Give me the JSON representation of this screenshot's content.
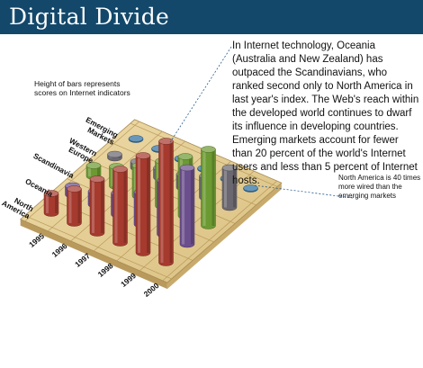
{
  "title": "Digital Divide",
  "notes": {
    "left": "Height of bars represents scores on Internet indicators",
    "main": "In Internet technology, Oceania (Australia and New Zealand) has outpaced the Scandinavians, who ranked second only to North America in last year's index. The Web's reach within the developed world continues to dwarf its influence in developing countries. Emerging markets account for fewer than 20 percent of the world's Internet users and less than 5 percent of Internet hosts.",
    "right": "North America is 40 times more wired than the emerging markets"
  },
  "colors": {
    "North America": "#a63a2e",
    "Oceania": "#6b4f8d",
    "Scandinavia": "#6c9a32",
    "Western Europe": "#6b6770",
    "Emerging Markets": "#2f6f9e",
    "title_bar": "#13486b",
    "floor": "#e6d09a"
  },
  "chart_data": {
    "type": "bar",
    "subtype": "3d-grouped",
    "categories": [
      "1995",
      "1996",
      "1997",
      "1998",
      "1999",
      "2000"
    ],
    "series": [
      {
        "name": "North America",
        "values": [
          22,
          38,
          60,
          82,
          108,
          135
        ]
      },
      {
        "name": "Oceania",
        "values": [
          10,
          15,
          24,
          36,
          60,
          85
        ]
      },
      {
        "name": "Scandinavia",
        "values": [
          12,
          22,
          34,
          50,
          66,
          85
        ]
      },
      {
        "name": "Western Europe",
        "values": [
          4,
          7,
          11,
          15,
          24,
          44
        ]
      },
      {
        "name": "Emerging Markets",
        "values": [
          1,
          1,
          1,
          1,
          1,
          1
        ]
      }
    ],
    "axis_labels": {
      "rows": [
        "North America",
        "Oceania",
        "Scandinavia",
        "Western Europe",
        "Emerging Markets"
      ],
      "columns": [
        "1995",
        "1996",
        "1997",
        "1998",
        "1999",
        "2000"
      ]
    }
  }
}
